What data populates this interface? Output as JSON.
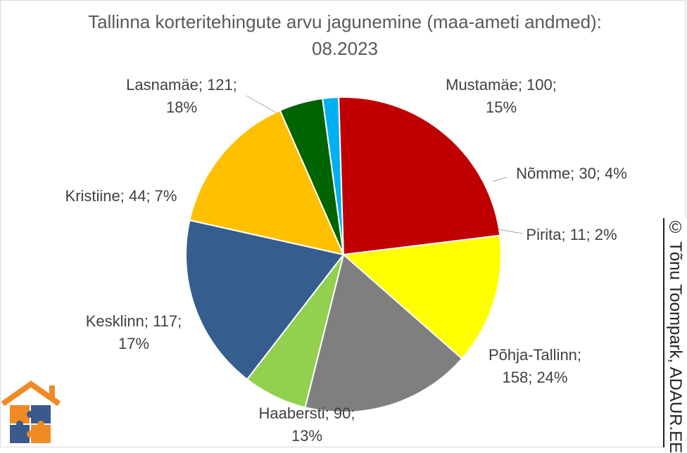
{
  "chart_data": {
    "type": "pie",
    "title": "Tallinna korteritehingute arvu jagunemine (maa-ameti andmed): 08.2023",
    "slices": [
      {
        "name": "Mustamäe",
        "value": 100,
        "percent": "15%",
        "color": "#FFC000",
        "label_line1": "Mustamäe; 100;",
        "label_line2": "15%"
      },
      {
        "name": "Nõmme",
        "value": 30,
        "percent": "4%",
        "color": "#006400",
        "label_line1": "Nõmme; 30; 4%",
        "label_line2": ""
      },
      {
        "name": "Pirita",
        "value": 11,
        "percent": "2%",
        "color": "#00B0F0",
        "label_line1": "Pirita; 11; 2%",
        "label_line2": ""
      },
      {
        "name": "Põhja-Tallinn",
        "value": 158,
        "percent": "24%",
        "color": "#C00000",
        "label_line1": "Põhja-Tallinn;",
        "label_line2": "158; 24%"
      },
      {
        "name": "Haabersti",
        "value": 90,
        "percent": "13%",
        "color": "#FFFF00",
        "label_line1": "Haabersti; 90;",
        "label_line2": "13%"
      },
      {
        "name": "Kesklinn",
        "value": 117,
        "percent": "17%",
        "color": "#7F7F7F",
        "label_line1": "Kesklinn; 117;",
        "label_line2": "17%"
      },
      {
        "name": "Kristiine",
        "value": 44,
        "percent": "7%",
        "color": "#92D050",
        "label_line1": "Kristiine; 44; 7%",
        "label_line2": ""
      },
      {
        "name": "Lasnamäe",
        "value": 121,
        "percent": "18%",
        "color": "#355E8F",
        "label_line1": "Lasnamäe; 121;",
        "label_line2": "18%"
      }
    ]
  },
  "credit": "© Tõnu Toompark, ADAUR.EE"
}
